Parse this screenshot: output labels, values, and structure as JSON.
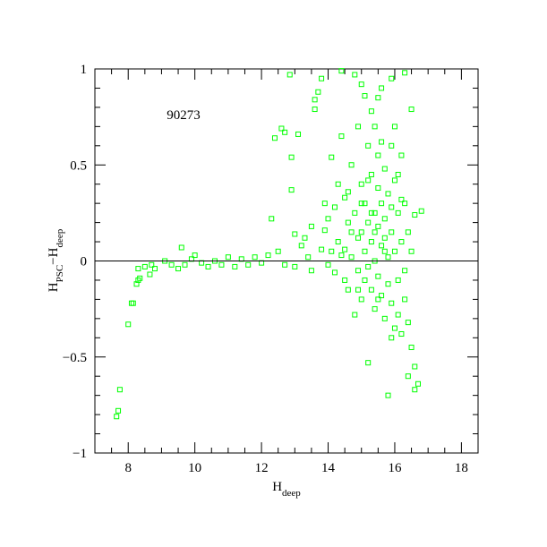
{
  "chart_data": {
    "type": "scatter",
    "annotation": "90273",
    "xlabel": {
      "parts": [
        {
          "text": "H"
        },
        {
          "text": "deep",
          "sub": true
        }
      ]
    },
    "ylabel": {
      "parts": [
        {
          "text": "H"
        },
        {
          "text": "PSC",
          "sub": true
        },
        {
          "text": "−H"
        },
        {
          "text": "deep",
          "sub": true
        }
      ]
    },
    "color": "#00ff00",
    "hline": 0,
    "xlim": [
      7,
      18.5
    ],
    "ylim": [
      -1,
      1
    ],
    "xticks": [
      8,
      10,
      12,
      14,
      16,
      18
    ],
    "yticks": [
      {
        "value": -1,
        "label": "−1"
      },
      {
        "value": -0.5,
        "label": "−0.5"
      },
      0,
      0.5,
      1
    ],
    "xminorticks": [
      7.5,
      8.5,
      9,
      9.5,
      10.5,
      11,
      11.5,
      12.5,
      13,
      13.5,
      14.5,
      15,
      15.5,
      16.5,
      17,
      17.5
    ],
    "yminorticks": [
      -0.9,
      -0.8,
      -0.7,
      -0.6,
      -0.4,
      -0.3,
      -0.2,
      -0.1,
      0.1,
      0.2,
      0.3,
      0.4,
      0.6,
      0.7,
      0.8,
      0.9
    ],
    "x": [
      7.65,
      7.7,
      7.75,
      8.0,
      8.1,
      8.15,
      8.25,
      8.3,
      8.35,
      8.3,
      8.5,
      8.65,
      8.7,
      8.8,
      9.1,
      9.3,
      9.5,
      9.6,
      9.7,
      9.9,
      10.0,
      10.2,
      10.4,
      10.6,
      10.8,
      11.0,
      11.2,
      11.4,
      11.6,
      11.8,
      12.0,
      12.2,
      12.3,
      12.4,
      12.6,
      12.7,
      12.85,
      12.9,
      12.9,
      13.1,
      13.0,
      12.5,
      12.7,
      13.2,
      13.4,
      13.5,
      13.6,
      13.6,
      13.7,
      13.8,
      13.9,
      13.3,
      13.0,
      13.5,
      13.8,
      13.9,
      14.0,
      14.1,
      14.2,
      14.2,
      14.3,
      14.3,
      14.4,
      14.4,
      14.5,
      14.5,
      14.5,
      14.6,
      14.6,
      14.7,
      14.7,
      14.8,
      14.8,
      14.8,
      14.9,
      14.9,
      15.0,
      15.0,
      15.0,
      15.0,
      15.1,
      15.1,
      15.1,
      15.2,
      15.2,
      15.2,
      15.2,
      15.3,
      15.3,
      15.3,
      15.4,
      15.4,
      15.4,
      15.4,
      15.5,
      15.5,
      15.5,
      15.5,
      15.6,
      15.6,
      15.6,
      15.6,
      15.7,
      15.7,
      15.7,
      15.7,
      15.8,
      15.8,
      15.8,
      15.8,
      15.9,
      15.9,
      15.9,
      16.0,
      16.0,
      16.0,
      16.1,
      16.1,
      16.1,
      16.2,
      16.2,
      16.2,
      16.3,
      16.3,
      16.3,
      16.3,
      16.4,
      16.4,
      16.4,
      16.5,
      16.5,
      16.5,
      16.6,
      16.6,
      16.7,
      16.8,
      16.6,
      14.0,
      14.4,
      15.9,
      14.6,
      15.3,
      15.5,
      15.9,
      14.9,
      15.1,
      14.1,
      14.9,
      15.6,
      16.0,
      15.2,
      15.4,
      15.7,
      15.5,
      15.9,
      16.1,
      16.2,
      14.7,
      15.0,
      15.3
    ],
    "values": [
      -0.81,
      -0.78,
      -0.67,
      -0.33,
      -0.22,
      -0.22,
      -0.12,
      -0.1,
      -0.09,
      -0.04,
      -0.03,
      -0.07,
      -0.02,
      -0.04,
      0.0,
      -0.02,
      -0.04,
      0.07,
      -0.02,
      0.01,
      0.03,
      -0.01,
      -0.03,
      0.0,
      -0.02,
      0.02,
      -0.03,
      0.01,
      -0.02,
      0.02,
      -0.01,
      0.03,
      0.22,
      0.64,
      0.69,
      0.67,
      0.97,
      0.54,
      0.37,
      0.66,
      0.14,
      0.05,
      -0.02,
      0.08,
      0.02,
      0.18,
      0.79,
      0.84,
      0.88,
      0.95,
      0.3,
      0.12,
      -0.03,
      -0.05,
      0.06,
      0.16,
      0.22,
      0.54,
      0.28,
      -0.06,
      0.1,
      0.4,
      0.99,
      0.65,
      0.06,
      -0.1,
      0.33,
      0.2,
      -0.15,
      0.5,
      0.02,
      0.97,
      -0.28,
      0.25,
      0.12,
      -0.05,
      0.92,
      0.4,
      0.15,
      -0.2,
      0.3,
      0.05,
      -0.1,
      -0.53,
      0.6,
      0.2,
      -0.03,
      0.45,
      0.1,
      -0.15,
      0.7,
      0.25,
      0.0,
      -0.25,
      0.55,
      0.18,
      -0.08,
      0.38,
      0.9,
      0.3,
      0.08,
      -0.18,
      0.48,
      0.12,
      -0.3,
      0.22,
      -0.7,
      0.35,
      0.02,
      -0.12,
      0.6,
      0.15,
      -0.22,
      0.42,
      0.05,
      -0.35,
      0.25,
      -0.1,
      -0.28,
      0.55,
      0.1,
      -0.38,
      0.98,
      0.3,
      -0.05,
      -0.2,
      -0.6,
      0.15,
      -0.32,
      -0.45,
      0.79,
      0.05,
      -0.67,
      0.24,
      -0.64,
      0.26,
      -0.55,
      -0.02,
      0.03,
      -0.4,
      0.36,
      0.78,
      0.85,
      0.95,
      0.7,
      0.86,
      0.05,
      -0.15,
      0.62,
      0.7,
      0.42,
      0.15,
      0.05,
      -0.2,
      0.28,
      0.45,
      0.32,
      0.15,
      0.3,
      0.25
    ]
  }
}
